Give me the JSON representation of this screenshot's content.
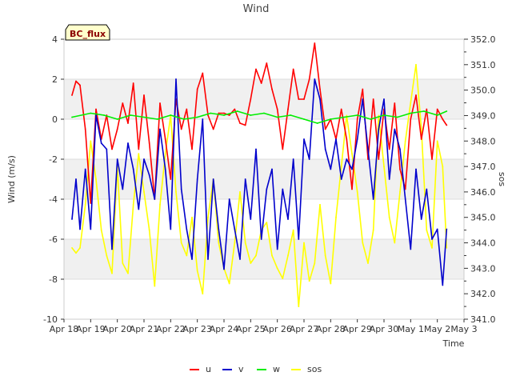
{
  "chart_data": {
    "type": "line",
    "title": "Wind",
    "badge": "BC_flux",
    "xlabel": "Time",
    "ylabel_left": "Wind (m/s)",
    "ylabel_right": "sos",
    "ylim_left": [
      -10,
      4
    ],
    "ylim_right": [
      341.0,
      352.0
    ],
    "xlim_days": [
      0,
      15
    ],
    "left_ticks": [
      4,
      2,
      0,
      -2,
      -4,
      -6,
      -8,
      -10
    ],
    "right_ticks": [
      "352.0",
      "351.0",
      "350.0",
      "349.0",
      "348.0",
      "347.0",
      "346.0",
      "345.0",
      "344.0",
      "343.0",
      "342.0",
      "341.0"
    ],
    "x_ticks": [
      {
        "day": 0,
        "label": "Apr 18"
      },
      {
        "day": 1,
        "label": "Apr 19"
      },
      {
        "day": 2,
        "label": "Apr 20"
      },
      {
        "day": 3,
        "label": "Apr 21"
      },
      {
        "day": 4,
        "label": "Apr 22"
      },
      {
        "day": 5,
        "label": "Apr 23"
      },
      {
        "day": 6,
        "label": "Apr 24"
      },
      {
        "day": 7,
        "label": "Apr 25"
      },
      {
        "day": 8,
        "label": "Apr 26"
      },
      {
        "day": 9,
        "label": "Apr 27"
      },
      {
        "day": 10,
        "label": "Apr 28"
      },
      {
        "day": 11,
        "label": "Apr 29"
      },
      {
        "day": 12,
        "label": "Apr 30"
      },
      {
        "day": 13,
        "label": "May 1"
      },
      {
        "day": 14,
        "label": "May 2"
      },
      {
        "day": 15,
        "label": "May 3"
      }
    ],
    "series": [
      {
        "name": "u",
        "color": "#ff0000",
        "axis": "left",
        "x": [
          0.3,
          0.45,
          0.6,
          0.8,
          1.0,
          1.2,
          1.4,
          1.6,
          1.8,
          2.0,
          2.2,
          2.4,
          2.6,
          2.8,
          3.0,
          3.2,
          3.4,
          3.6,
          3.8,
          4.0,
          4.2,
          4.4,
          4.6,
          4.8,
          5.0,
          5.2,
          5.4,
          5.6,
          5.8,
          6.0,
          6.2,
          6.4,
          6.6,
          6.8,
          7.0,
          7.2,
          7.4,
          7.6,
          7.8,
          8.0,
          8.2,
          8.4,
          8.6,
          8.8,
          9.0,
          9.2,
          9.4,
          9.6,
          9.8,
          10.0,
          10.2,
          10.4,
          10.6,
          10.8,
          11.0,
          11.2,
          11.4,
          11.6,
          11.8,
          12.0,
          12.2,
          12.4,
          12.6,
          12.8,
          13.0,
          13.2,
          13.4,
          13.6,
          13.8,
          14.0,
          14.2,
          14.35
        ],
        "values": [
          1.2,
          1.9,
          1.7,
          -0.5,
          -4.2,
          0.5,
          -1.0,
          0.2,
          -1.5,
          -0.5,
          0.8,
          -0.2,
          1.8,
          -1.5,
          1.2,
          -1.2,
          -4.0,
          0.8,
          -1.0,
          -3.0,
          1.0,
          -0.5,
          0.5,
          -1.5,
          1.5,
          2.3,
          0.2,
          -0.5,
          0.3,
          0.3,
          0.2,
          0.5,
          -0.2,
          -0.3,
          1.0,
          2.5,
          1.8,
          2.8,
          1.5,
          0.5,
          -1.5,
          0.5,
          2.5,
          1.0,
          1.0,
          2.0,
          3.8,
          1.5,
          -0.5,
          0.0,
          -1.0,
          0.5,
          -1.0,
          -3.5,
          0.0,
          1.5,
          -2.0,
          1.0,
          -2.0,
          0.5,
          -1.5,
          0.8,
          -2.5,
          -3.5,
          0.0,
          1.2,
          -1.0,
          0.5,
          -2.0,
          0.5,
          0.0,
          -0.3
        ]
      },
      {
        "name": "v",
        "color": "#0000cc",
        "axis": "left",
        "x": [
          0.3,
          0.45,
          0.6,
          0.8,
          1.0,
          1.2,
          1.4,
          1.6,
          1.8,
          2.0,
          2.2,
          2.4,
          2.6,
          2.8,
          3.0,
          3.2,
          3.4,
          3.6,
          3.8,
          4.0,
          4.2,
          4.4,
          4.6,
          4.8,
          5.0,
          5.2,
          5.4,
          5.6,
          5.8,
          6.0,
          6.2,
          6.4,
          6.6,
          6.8,
          7.0,
          7.2,
          7.4,
          7.6,
          7.8,
          8.0,
          8.2,
          8.4,
          8.6,
          8.8,
          9.0,
          9.2,
          9.4,
          9.6,
          9.8,
          10.0,
          10.2,
          10.4,
          10.6,
          10.8,
          11.0,
          11.2,
          11.4,
          11.6,
          11.8,
          12.0,
          12.2,
          12.4,
          12.6,
          12.8,
          13.0,
          13.2,
          13.4,
          13.6,
          13.8,
          14.0,
          14.2,
          14.35
        ],
        "values": [
          -5.0,
          -3.0,
          -5.5,
          -2.5,
          -5.5,
          0.2,
          -1.2,
          -1.5,
          -6.5,
          -2.0,
          -3.5,
          -1.2,
          -2.5,
          -4.5,
          -2.0,
          -2.8,
          -4.0,
          -0.5,
          -2.5,
          -5.5,
          2.0,
          -3.5,
          -5.5,
          -7.0,
          -3.0,
          0.0,
          -7.0,
          -3.0,
          -5.5,
          -7.5,
          -4.0,
          -5.5,
          -7.0,
          -3.0,
          -5.0,
          -1.5,
          -6.0,
          -3.5,
          -2.5,
          -6.5,
          -3.5,
          -5.0,
          -2.0,
          -6.0,
          -1.0,
          -2.0,
          2.0,
          1.0,
          -1.5,
          -2.5,
          -1.0,
          -3.0,
          -2.0,
          -2.5,
          -1.0,
          1.0,
          -1.5,
          -4.0,
          -0.5,
          1.0,
          -3.0,
          -0.5,
          -1.5,
          -4.0,
          -6.5,
          -2.5,
          -5.0,
          -3.5,
          -6.0,
          -5.5,
          -8.3,
          -5.5
        ]
      },
      {
        "name": "w",
        "color": "#00ee00",
        "axis": "left",
        "x": [
          0.3,
          1.0,
          1.5,
          2.0,
          2.5,
          3.0,
          3.5,
          4.0,
          4.5,
          5.0,
          5.5,
          6.0,
          6.5,
          7.0,
          7.5,
          8.0,
          8.5,
          9.0,
          9.5,
          10.0,
          10.5,
          11.0,
          11.5,
          12.0,
          12.5,
          13.0,
          13.5,
          14.0,
          14.35
        ],
        "values": [
          0.1,
          0.3,
          0.2,
          0.0,
          0.2,
          0.1,
          0.0,
          0.2,
          0.0,
          0.1,
          0.3,
          0.2,
          0.4,
          0.2,
          0.3,
          0.1,
          0.2,
          0.0,
          -0.2,
          0.0,
          0.1,
          0.2,
          0.0,
          0.2,
          0.1,
          0.3,
          0.4,
          0.2,
          0.4
        ]
      },
      {
        "name": "sos",
        "color": "#ffff00",
        "axis": "right",
        "x": [
          0.3,
          0.45,
          0.6,
          0.8,
          1.0,
          1.2,
          1.4,
          1.6,
          1.8,
          2.0,
          2.2,
          2.4,
          2.6,
          2.8,
          3.0,
          3.2,
          3.4,
          3.6,
          3.8,
          4.0,
          4.2,
          4.4,
          4.6,
          4.8,
          5.0,
          5.2,
          5.4,
          5.6,
          5.8,
          6.0,
          6.2,
          6.4,
          6.6,
          6.8,
          7.0,
          7.2,
          7.4,
          7.6,
          7.8,
          8.0,
          8.2,
          8.4,
          8.6,
          8.8,
          9.0,
          9.2,
          9.4,
          9.6,
          9.8,
          10.0,
          10.2,
          10.4,
          10.6,
          10.8,
          11.0,
          11.2,
          11.4,
          11.6,
          11.8,
          12.0,
          12.2,
          12.4,
          12.6,
          12.8,
          13.0,
          13.2,
          13.4,
          13.6,
          13.8,
          14.0,
          14.2,
          14.35
        ],
        "values": [
          343.8,
          343.6,
          343.8,
          345.5,
          348.0,
          346.5,
          344.5,
          343.5,
          342.8,
          347.0,
          343.2,
          342.8,
          345.5,
          347.5,
          346.0,
          344.5,
          342.3,
          345.5,
          347.5,
          349.0,
          346.0,
          344.0,
          343.5,
          345.0,
          342.9,
          342.0,
          345.0,
          346.5,
          344.0,
          343.0,
          342.4,
          344.0,
          346.0,
          344.0,
          343.2,
          343.5,
          344.5,
          344.8,
          343.5,
          343.0,
          342.6,
          343.5,
          344.5,
          341.5,
          344.0,
          342.5,
          343.2,
          345.5,
          343.5,
          342.4,
          345.0,
          347.0,
          349.0,
          347.5,
          346.0,
          344.0,
          343.2,
          344.5,
          349.0,
          347.0,
          345.0,
          344.0,
          346.0,
          348.0,
          349.5,
          351.0,
          348.5,
          344.5,
          343.8,
          348.0,
          347.0,
          343.8
        ]
      }
    ],
    "legend": [
      "u",
      "v",
      "w",
      "sos"
    ],
    "bands": [
      [
        0,
        2
      ],
      [
        -4,
        -2
      ],
      [
        -8,
        -6
      ]
    ]
  }
}
